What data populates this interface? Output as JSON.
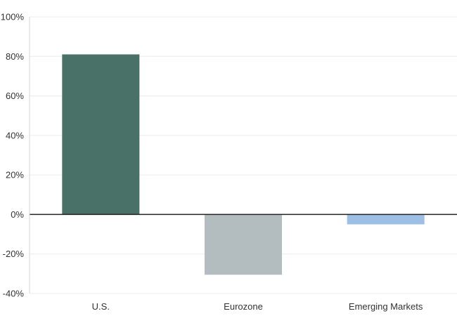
{
  "chart_data": {
    "type": "bar",
    "title": "",
    "xlabel": "",
    "ylabel": "",
    "categories": [
      "U.S.",
      "Eurozone",
      "Emerging Markets"
    ],
    "values": [
      81,
      -30.5,
      -5
    ],
    "colors": [
      "#4a7168",
      "#b3bcbf",
      "#9dbfe6"
    ],
    "ylim": [
      -40,
      100
    ],
    "yticks": [
      100,
      80,
      60,
      40,
      20,
      0,
      -20,
      -40
    ],
    "ytick_labels": [
      "100%",
      "80%",
      "60%",
      "40%",
      "20%",
      "0%",
      "-20%",
      "-40%"
    ],
    "grid": true,
    "legend": "none"
  }
}
